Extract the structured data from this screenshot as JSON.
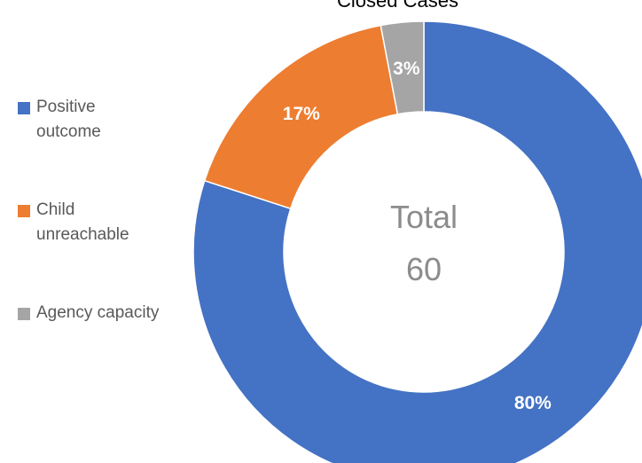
{
  "chart_data": {
    "type": "pie",
    "title": "Closed Cases",
    "categories": [
      "Positive outcome",
      "Child unreachable",
      "Agency capacity"
    ],
    "values": [
      80,
      17,
      3
    ],
    "data_labels": [
      "80%",
      "17%",
      "3%"
    ],
    "colors": [
      "#4472C4",
      "#ED7D31",
      "#A5A5A5"
    ],
    "label_colors": [
      "#FFFFFF",
      "#FFFFFF",
      "#FFFFFF"
    ],
    "center": {
      "label": "Total",
      "value": "60"
    },
    "legend_position": "left",
    "donut": true
  }
}
